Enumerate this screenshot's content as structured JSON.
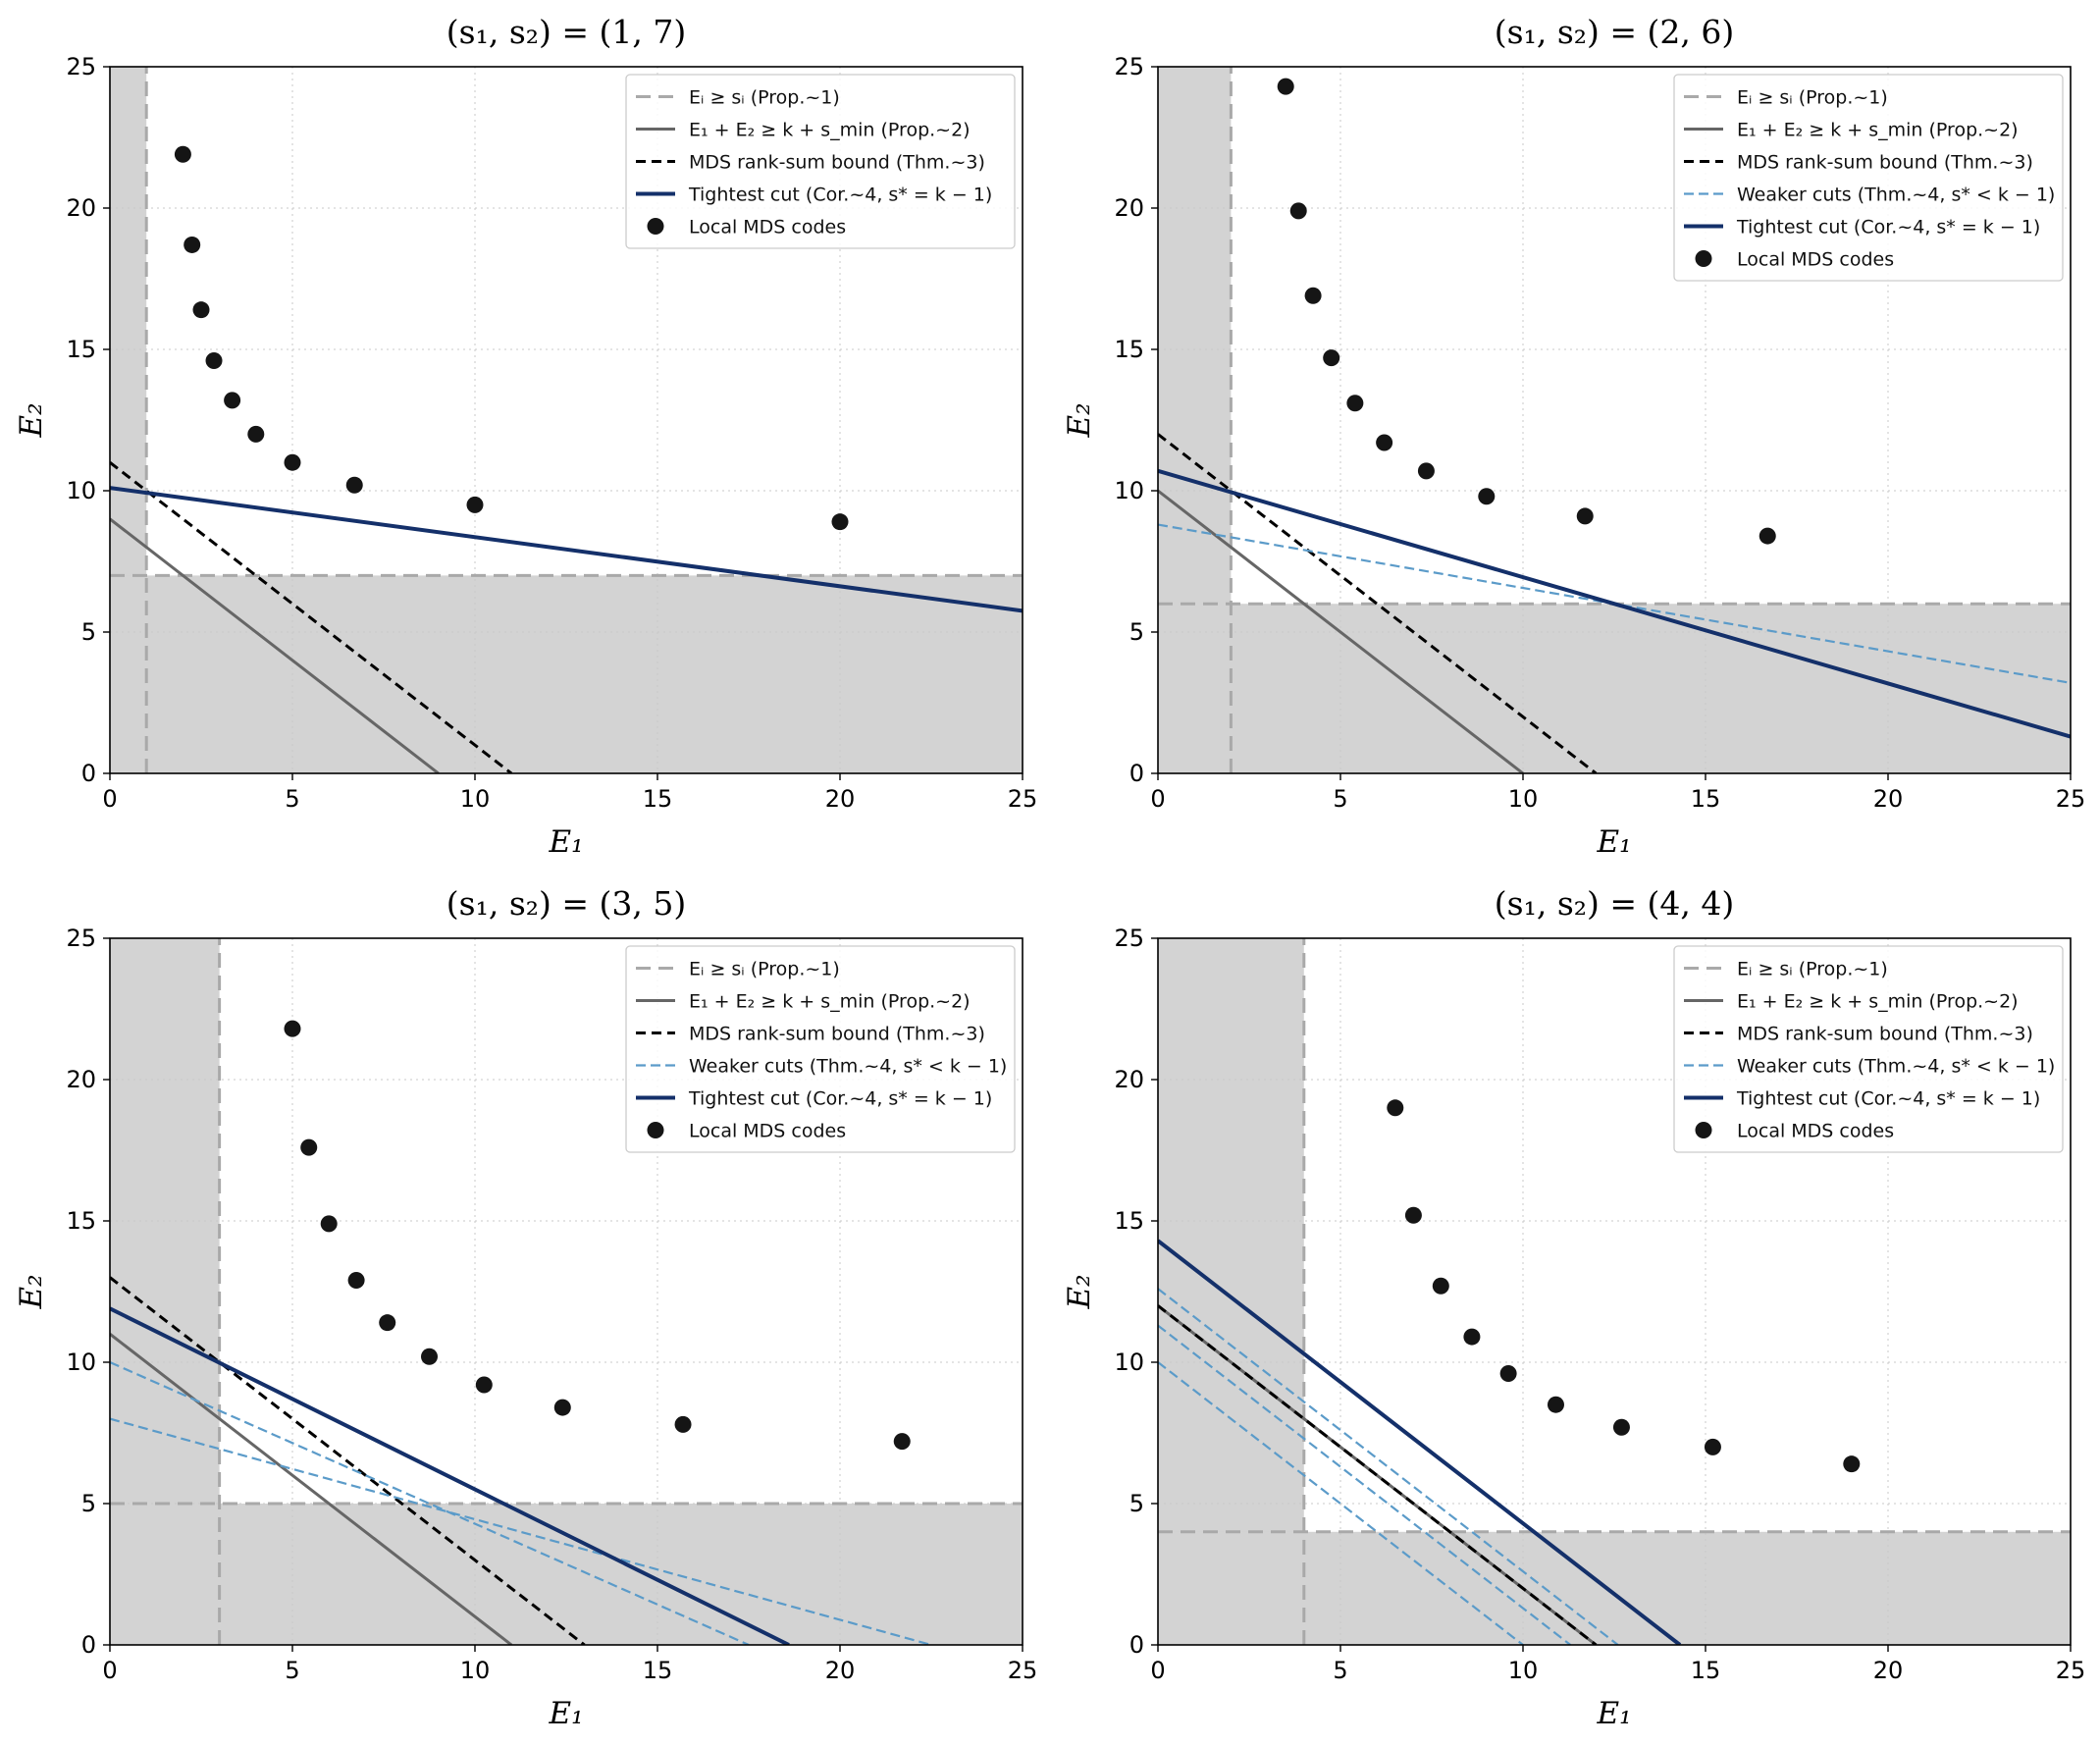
{
  "figure": {
    "layout": "2x2 grid of Pareto region plots"
  },
  "chart_data": [
    {
      "type": "scatter",
      "title": "(s₁, s₂) = (1, 7)",
      "xlabel": "E₁",
      "ylabel": "E₂",
      "xlim": [
        0,
        25
      ],
      "ylim": [
        0,
        25
      ],
      "xticks": [
        0,
        5,
        10,
        15,
        20,
        25
      ],
      "yticks": [
        0,
        5,
        10,
        15,
        20,
        25
      ],
      "grid": true,
      "shading": {
        "s1": 1,
        "s2": 7
      },
      "lines": [
        {
          "kind": "prop1",
          "x": [
            1,
            1
          ],
          "y": [
            0,
            25
          ],
          "color": "#a9a9a9"
        },
        {
          "kind": "prop1",
          "x": [
            0,
            25
          ],
          "y": [
            7,
            7
          ],
          "color": "#a9a9a9"
        },
        {
          "kind": "prop2",
          "x": [
            0,
            9
          ],
          "y": [
            9,
            0
          ],
          "color": "#666666"
        },
        {
          "kind": "mds",
          "x": [
            0,
            11
          ],
          "y": [
            11,
            0
          ],
          "color": "#000000"
        },
        {
          "kind": "tight",
          "x": [
            0,
            25
          ],
          "y": [
            10.1,
            5.75
          ],
          "color": "#14306a"
        }
      ],
      "points": {
        "x": [
          2,
          2.25,
          2.5,
          2.85,
          3.35,
          4,
          5,
          6.7,
          10,
          20
        ],
        "y": [
          21.9,
          18.7,
          16.4,
          14.6,
          13.2,
          12,
          11,
          10.2,
          9.5,
          8.9
        ]
      },
      "legend": {
        "position": "top-right",
        "entries": [
          {
            "kind": "prop1",
            "label": "Eᵢ ≥ sᵢ (Prop.~1)"
          },
          {
            "kind": "prop2",
            "label": "E₁ + E₂ ≥ k + s_min (Prop.~2)"
          },
          {
            "kind": "mds",
            "label": "MDS rank-sum bound (Thm.~3)"
          },
          {
            "kind": "tight",
            "label": "Tightest cut (Cor.~4, s* = k − 1)"
          },
          {
            "kind": "points",
            "label": "Local MDS codes"
          }
        ]
      }
    },
    {
      "type": "scatter",
      "title": "(s₁, s₂) = (2, 6)",
      "xlabel": "E₁",
      "ylabel": "E₂",
      "xlim": [
        0,
        25
      ],
      "ylim": [
        0,
        25
      ],
      "xticks": [
        0,
        5,
        10,
        15,
        20,
        25
      ],
      "yticks": [
        0,
        5,
        10,
        15,
        20,
        25
      ],
      "grid": true,
      "shading": {
        "s1": 2,
        "s2": 6
      },
      "lines": [
        {
          "kind": "prop1",
          "x": [
            2,
            2
          ],
          "y": [
            0,
            25
          ],
          "color": "#a9a9a9"
        },
        {
          "kind": "prop1",
          "x": [
            0,
            25
          ],
          "y": [
            6,
            6
          ],
          "color": "#a9a9a9"
        },
        {
          "kind": "prop2",
          "x": [
            0,
            10
          ],
          "y": [
            10,
            0
          ],
          "color": "#666666"
        },
        {
          "kind": "mds",
          "x": [
            0,
            12
          ],
          "y": [
            12,
            0
          ],
          "color": "#000000"
        },
        {
          "kind": "weak",
          "x": [
            0,
            25
          ],
          "y": [
            8.8,
            3.2
          ],
          "color": "#5b9bc9"
        },
        {
          "kind": "tight",
          "x": [
            0,
            25
          ],
          "y": [
            10.7,
            1.3
          ],
          "color": "#14306a"
        }
      ],
      "points": {
        "x": [
          3.5,
          3.85,
          4.25,
          4.75,
          5.4,
          6.2,
          7.35,
          9,
          11.7,
          16.7
        ],
        "y": [
          24.3,
          19.9,
          16.9,
          14.7,
          13.1,
          11.7,
          10.7,
          9.8,
          9.1,
          8.4
        ]
      },
      "legend": {
        "position": "top-right",
        "entries": [
          {
            "kind": "prop1",
            "label": "Eᵢ ≥ sᵢ (Prop.~1)"
          },
          {
            "kind": "prop2",
            "label": "E₁ + E₂ ≥ k + s_min (Prop.~2)"
          },
          {
            "kind": "mds",
            "label": "MDS rank-sum bound (Thm.~3)"
          },
          {
            "kind": "weak",
            "label": "Weaker cuts (Thm.~4, s* < k − 1)"
          },
          {
            "kind": "tight",
            "label": "Tightest cut (Cor.~4, s* = k − 1)"
          },
          {
            "kind": "points",
            "label": "Local MDS codes"
          }
        ]
      }
    },
    {
      "type": "scatter",
      "title": "(s₁, s₂) = (3, 5)",
      "xlabel": "E₁",
      "ylabel": "E₂",
      "xlim": [
        0,
        25
      ],
      "ylim": [
        0,
        25
      ],
      "xticks": [
        0,
        5,
        10,
        15,
        20,
        25
      ],
      "yticks": [
        0,
        5,
        10,
        15,
        20,
        25
      ],
      "grid": true,
      "shading": {
        "s1": 3,
        "s2": 5
      },
      "lines": [
        {
          "kind": "prop1",
          "x": [
            3,
            3
          ],
          "y": [
            0,
            25
          ],
          "color": "#a9a9a9"
        },
        {
          "kind": "prop1",
          "x": [
            0,
            25
          ],
          "y": [
            5,
            5
          ],
          "color": "#a9a9a9"
        },
        {
          "kind": "prop2",
          "x": [
            0,
            11
          ],
          "y": [
            11,
            0
          ],
          "color": "#666666"
        },
        {
          "kind": "mds",
          "x": [
            0,
            13
          ],
          "y": [
            13,
            0
          ],
          "color": "#000000"
        },
        {
          "kind": "weak",
          "x": [
            0,
            22.5
          ],
          "y": [
            8,
            0
          ],
          "color": "#5b9bc9"
        },
        {
          "kind": "weak",
          "x": [
            0,
            17.5
          ],
          "y": [
            10,
            0
          ],
          "color": "#5b9bc9"
        },
        {
          "kind": "tight",
          "x": [
            0,
            18.6
          ],
          "y": [
            11.9,
            0
          ],
          "color": "#14306a"
        }
      ],
      "points": {
        "x": [
          5,
          5.45,
          6,
          6.75,
          7.6,
          8.75,
          10.25,
          12.4,
          15.7,
          21.7
        ],
        "y": [
          21.8,
          17.6,
          14.9,
          12.9,
          11.4,
          10.2,
          9.2,
          8.4,
          7.8,
          7.2
        ]
      },
      "legend": {
        "position": "top-right",
        "entries": [
          {
            "kind": "prop1",
            "label": "Eᵢ ≥ sᵢ (Prop.~1)"
          },
          {
            "kind": "prop2",
            "label": "E₁ + E₂ ≥ k + s_min (Prop.~2)"
          },
          {
            "kind": "mds",
            "label": "MDS rank-sum bound (Thm.~3)"
          },
          {
            "kind": "weak",
            "label": "Weaker cuts (Thm.~4, s* < k − 1)"
          },
          {
            "kind": "tight",
            "label": "Tightest cut (Cor.~4, s* = k − 1)"
          },
          {
            "kind": "points",
            "label": "Local MDS codes"
          }
        ]
      }
    },
    {
      "type": "scatter",
      "title": "(s₁, s₂) = (4, 4)",
      "xlabel": "E₁",
      "ylabel": "E₂",
      "xlim": [
        0,
        25
      ],
      "ylim": [
        0,
        25
      ],
      "xticks": [
        0,
        5,
        10,
        15,
        20,
        25
      ],
      "yticks": [
        0,
        5,
        10,
        15,
        20,
        25
      ],
      "grid": true,
      "shading": {
        "s1": 4,
        "s2": 4
      },
      "lines": [
        {
          "kind": "prop1",
          "x": [
            4,
            4
          ],
          "y": [
            0,
            25
          ],
          "color": "#a9a9a9"
        },
        {
          "kind": "prop1",
          "x": [
            0,
            25
          ],
          "y": [
            4,
            4
          ],
          "color": "#a9a9a9"
        },
        {
          "kind": "prop2",
          "x": [
            0,
            12
          ],
          "y": [
            12,
            0
          ],
          "color": "#666666"
        },
        {
          "kind": "mds",
          "x": [
            0,
            12
          ],
          "y": [
            12,
            0
          ],
          "color": "#000000"
        },
        {
          "kind": "weak",
          "x": [
            0,
            10
          ],
          "y": [
            10,
            0
          ],
          "color": "#5b9bc9"
        },
        {
          "kind": "weak",
          "x": [
            0,
            11.3
          ],
          "y": [
            11.3,
            0
          ],
          "color": "#5b9bc9"
        },
        {
          "kind": "weak",
          "x": [
            0,
            12.6
          ],
          "y": [
            12.6,
            0
          ],
          "color": "#5b9bc9"
        },
        {
          "kind": "tight",
          "x": [
            0,
            14.3
          ],
          "y": [
            14.3,
            0
          ],
          "color": "#14306a"
        }
      ],
      "points": {
        "x": [
          6.5,
          7,
          7.75,
          8.6,
          9.6,
          10.9,
          12.7,
          15.2,
          19
        ],
        "y": [
          19,
          15.2,
          12.7,
          10.9,
          9.6,
          8.5,
          7.7,
          7,
          6.4
        ]
      },
      "legend": {
        "position": "top-right",
        "entries": [
          {
            "kind": "prop1",
            "label": "Eᵢ ≥ sᵢ (Prop.~1)"
          },
          {
            "kind": "prop2",
            "label": "E₁ + E₂ ≥ k + s_min (Prop.~2)"
          },
          {
            "kind": "mds",
            "label": "MDS rank-sum bound (Thm.~3)"
          },
          {
            "kind": "weak",
            "label": "Weaker cuts (Thm.~4, s* < k − 1)"
          },
          {
            "kind": "tight",
            "label": "Tightest cut (Cor.~4, s* = k − 1)"
          },
          {
            "kind": "points",
            "label": "Local MDS codes"
          }
        ]
      }
    }
  ]
}
